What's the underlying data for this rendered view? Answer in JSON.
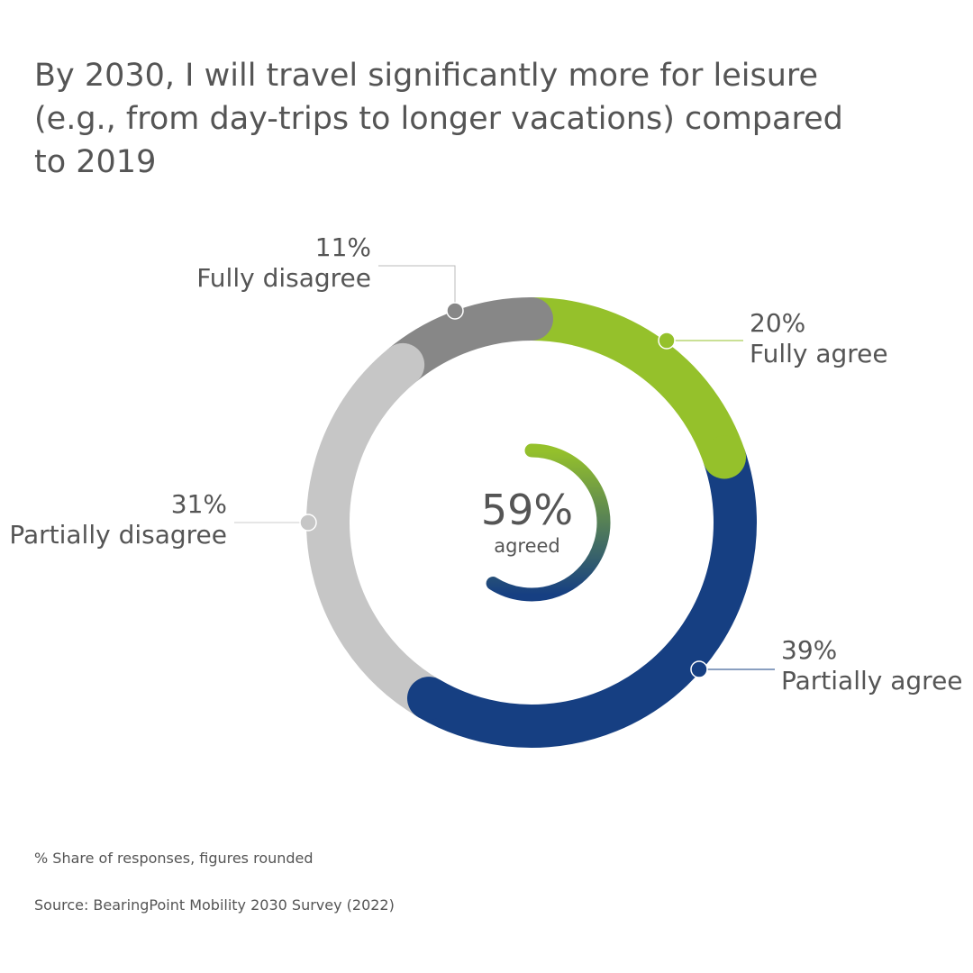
{
  "chart_data": {
    "type": "pie",
    "title": "By 2030, I will travel significantly more for leisure (e.g., from day-trips to longer vacations) compared to 2019",
    "donut": true,
    "slices": [
      {
        "label": "Fully agree",
        "value": 20,
        "value_label": "20%",
        "color": "#95C12B"
      },
      {
        "label": "Partially agree",
        "value": 39,
        "value_label": "39%",
        "color": "#163F82"
      },
      {
        "label": "Partially disagree",
        "value": 31,
        "value_label": "31%",
        "color": "#C6C6C6"
      },
      {
        "label": "Fully disagree",
        "value": 11,
        "value_label": "11%",
        "color": "#878787"
      }
    ],
    "center": {
      "value": 59,
      "value_label": "59%",
      "caption": "agreed"
    },
    "footnote": "% Share of responses, figures rounded",
    "source": "Source: BearingPoint Mobility 2030 Survey (2022)"
  }
}
